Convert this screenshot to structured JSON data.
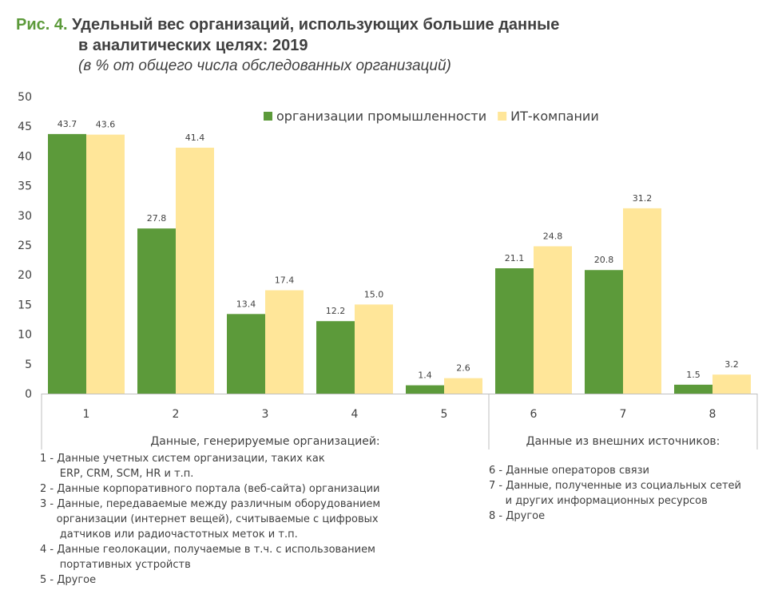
{
  "title": {
    "figure_label": "Рис. 4.",
    "line1": "Удельный вес организаций, использующих большие данные",
    "line2": "в аналитических целях: 2019",
    "subtitle": "(в % от общего числа обследованных организаций)"
  },
  "colors": {
    "industry": "#5c9a3a",
    "it": "#ffe699",
    "figure_label": "#5c9a3a",
    "text": "#404040",
    "axis": "#bfbfbf"
  },
  "chart_data": {
    "type": "bar",
    "categories": [
      "1",
      "2",
      "3",
      "4",
      "5",
      "6",
      "7",
      "8"
    ],
    "series": [
      {
        "name": "организации промышленности",
        "values": [
          43.7,
          27.8,
          13.4,
          12.2,
          1.4,
          21.1,
          20.8,
          1.5
        ],
        "labels": [
          "43.7",
          "27.8",
          "13.4",
          "12.2",
          "1.4",
          "21.1",
          "20.8",
          "1.5"
        ]
      },
      {
        "name": "ИТ-компании",
        "values": [
          43.6,
          41.4,
          17.4,
          15.0,
          2.6,
          24.8,
          31.2,
          3.2
        ],
        "labels": [
          "43.6",
          "41.4",
          "17.4",
          "15.0",
          "2.6",
          "24.8",
          "31.2",
          "3.2"
        ]
      }
    ],
    "yticks": [
      "0",
      "5",
      "10",
      "15",
      "20",
      "25",
      "30",
      "35",
      "40",
      "45",
      "50"
    ],
    "ylim": [
      0,
      50
    ],
    "groups": [
      {
        "label": "Данные, генерируемые организацией:",
        "categories": [
          "1",
          "2",
          "3",
          "4",
          "5"
        ]
      },
      {
        "label": "Данные из внешних источников:",
        "categories": [
          "6",
          "7",
          "8"
        ]
      }
    ],
    "legend_position": "top-right",
    "grid": false
  },
  "notes_left": [
    "1 - Данные учетных систем организации, таких как",
    "      ERP, CRM, SCM, HR и т.п.",
    "2 - Данные корпоративного портала (веб-сайта) организации",
    "3 - Данные, передаваемые между различным оборудованием",
    "     организации (интернет вещей), считываемые с цифровых",
    "      датчиков или радиочастотных меток и т.п.",
    "4 - Данные геолокации, получаемые в т.ч. с использованием",
    "      портативных устройств",
    "5 - Другое"
  ],
  "notes_right": [
    "6 - Данные операторов связи",
    "7 - Данные, полученные из социальных сетей",
    "     и других информационных ресурсов",
    "8 - Другое"
  ]
}
